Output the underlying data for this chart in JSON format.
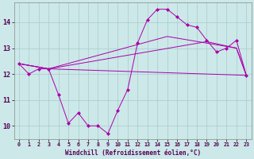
{
  "xlabel": "Windchill (Refroidissement éolien,°C)",
  "bg_color": "#cce8e8",
  "line_color": "#aa00aa",
  "xlim": [
    -0.5,
    23.5
  ],
  "ylim": [
    9.5,
    14.75
  ],
  "yticks": [
    10,
    11,
    12,
    13,
    14
  ],
  "xticks": [
    0,
    1,
    2,
    3,
    4,
    5,
    6,
    7,
    8,
    9,
    10,
    11,
    12,
    13,
    14,
    15,
    16,
    17,
    18,
    19,
    20,
    21,
    22,
    23
  ],
  "main_line_x": [
    0,
    1,
    2,
    3,
    4,
    5,
    6,
    7,
    8,
    9,
    10,
    11,
    12,
    13,
    14,
    15,
    16,
    17,
    18,
    19,
    20,
    21,
    22,
    23
  ],
  "main_line_y": [
    12.4,
    12.0,
    12.2,
    12.2,
    11.2,
    10.1,
    10.5,
    10.0,
    10.0,
    9.7,
    10.6,
    11.4,
    13.2,
    14.1,
    14.5,
    14.5,
    14.2,
    13.9,
    13.8,
    13.3,
    12.85,
    13.0,
    13.3,
    11.95
  ],
  "line2_x": [
    0,
    3,
    23
  ],
  "line2_y": [
    12.4,
    12.2,
    11.95
  ],
  "line3_x": [
    0,
    3,
    19,
    22,
    23
  ],
  "line3_y": [
    12.4,
    12.2,
    13.25,
    13.0,
    11.95
  ],
  "line4_x": [
    0,
    3,
    15,
    22,
    23
  ],
  "line4_y": [
    12.4,
    12.2,
    13.45,
    13.0,
    11.95
  ]
}
